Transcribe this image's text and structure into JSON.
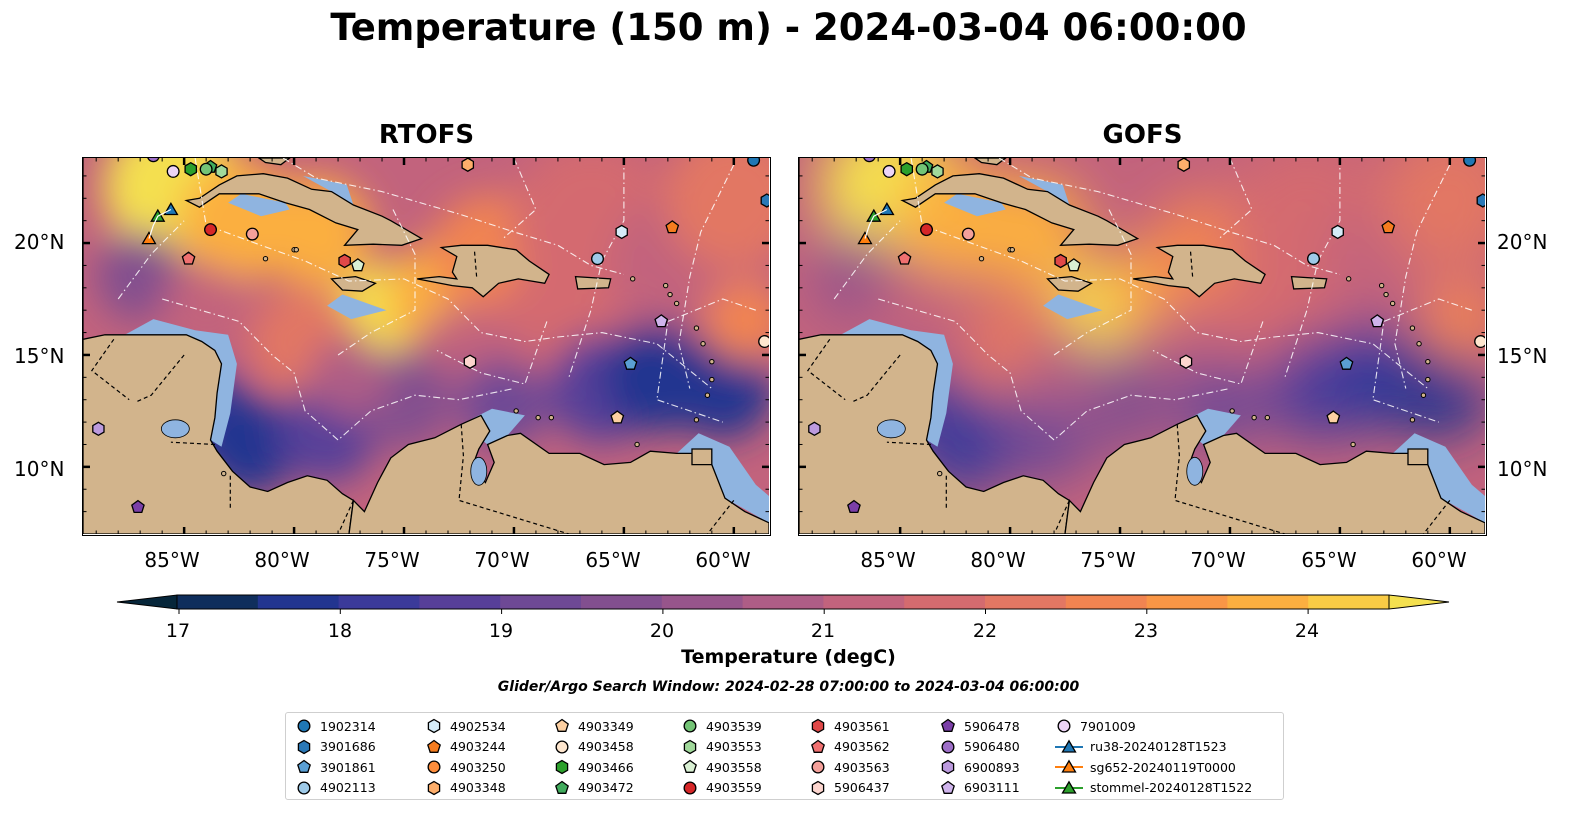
{
  "title": "Temperature (150 m) - 2024-03-04 06:00:00",
  "panels": [
    {
      "title": "RTOFS"
    },
    {
      "title": "GOFS"
    }
  ],
  "map": {
    "lon_range": [
      -89.6,
      -58.4
    ],
    "lat_range": [
      7,
      23.8
    ],
    "lat_ticks": [
      "20°N",
      "15°N",
      "10°N"
    ],
    "lon_ticks": [
      "85°W",
      "80°W",
      "75°W",
      "70°W",
      "65°W",
      "60°W"
    ],
    "colors": {
      "land": "#d2b48c",
      "shelf": "#8fb4e0",
      "ocean_deep": "#08222f",
      "coast": "#000000"
    }
  },
  "colorbar": {
    "label": "Temperature (degC)",
    "ticks": [
      "17",
      "18",
      "19",
      "20",
      "21",
      "22",
      "23",
      "24"
    ],
    "range": [
      16.75,
      24.75
    ],
    "colors": [
      "#06263a",
      "#0f2e5c",
      "#223590",
      "#3b3a9a",
      "#573f99",
      "#6e4995",
      "#824f8f",
      "#97558b",
      "#ae5d86",
      "#c2637d",
      "#d46b6f",
      "#e27763",
      "#f18451",
      "#f99646",
      "#fbaf40",
      "#f9cb45",
      "#f4e04f"
    ]
  },
  "search_window": "Glider/Argo Search Window: 2024-02-28 07:00:00 to 2024-03-04 06:00:00",
  "legend": [
    {
      "label": "1902314",
      "marker": "circle",
      "color": "#1f77b4"
    },
    {
      "label": "3901686",
      "marker": "hexagon",
      "color": "#2a78b6"
    },
    {
      "label": "3901861",
      "marker": "pentagon",
      "color": "#5a9fd4"
    },
    {
      "label": "4902113",
      "marker": "circle",
      "color": "#9ecae8"
    },
    {
      "label": "4902534",
      "marker": "hexagon",
      "color": "#d5ecf8"
    },
    {
      "label": "4903244",
      "marker": "pentagon",
      "color": "#f57c1f"
    },
    {
      "label": "4903250",
      "marker": "circle",
      "color": "#fd8d3c"
    },
    {
      "label": "4903348",
      "marker": "hexagon",
      "color": "#fdae6b"
    },
    {
      "label": "4903349",
      "marker": "pentagon",
      "color": "#fdd0a2"
    },
    {
      "label": "4903458",
      "marker": "circle",
      "color": "#fee6ce"
    },
    {
      "label": "4903466",
      "marker": "hexagon",
      "color": "#2ca02c"
    },
    {
      "label": "4903472",
      "marker": "pentagon",
      "color": "#41ab5d"
    },
    {
      "label": "4903539",
      "marker": "circle",
      "color": "#74c476"
    },
    {
      "label": "4903553",
      "marker": "hexagon",
      "color": "#a1d99b"
    },
    {
      "label": "4903558",
      "marker": "pentagon",
      "color": "#d9f0d3"
    },
    {
      "label": "4903559",
      "marker": "circle",
      "color": "#d62728"
    },
    {
      "label": "4903561",
      "marker": "hexagon",
      "color": "#e04848"
    },
    {
      "label": "4903562",
      "marker": "pentagon",
      "color": "#f07070"
    },
    {
      "label": "4903563",
      "marker": "circle",
      "color": "#f4a09a"
    },
    {
      "label": "5906437",
      "marker": "hexagon",
      "color": "#fcd5ce"
    },
    {
      "label": "5906478",
      "marker": "pentagon",
      "color": "#7b3fa8"
    },
    {
      "label": "5906480",
      "marker": "circle",
      "color": "#9e6fc8"
    },
    {
      "label": "6900893",
      "marker": "hexagon",
      "color": "#bc9ade"
    },
    {
      "label": "6903111",
      "marker": "pentagon",
      "color": "#cfb4ec"
    },
    {
      "label": "7901009",
      "marker": "circle",
      "color": "#ecd4f6"
    },
    {
      "label": "ru38-20240128T1523",
      "marker": "triangle-line",
      "color": "#1f77b4"
    },
    {
      "label": "sg652-20240119T0000",
      "marker": "triangle-line",
      "color": "#ff7f0e"
    },
    {
      "label": "stommel-20240128T1522",
      "marker": "triangle-line",
      "color": "#2ca02c"
    }
  ],
  "observations": [
    {
      "id": "1902314",
      "lon": -59.1,
      "lat": 23.7
    },
    {
      "id": "3901686",
      "lon": -58.5,
      "lat": 21.9
    },
    {
      "id": "3901861",
      "lon": -64.7,
      "lat": 14.6
    },
    {
      "id": "4902113",
      "lon": -66.2,
      "lat": 19.3
    },
    {
      "id": "4902534",
      "lon": -65.1,
      "lat": 20.5
    },
    {
      "id": "4903244",
      "lon": -62.8,
      "lat": 20.7
    },
    {
      "id": "4903348",
      "lon": -72.1,
      "lat": 23.5
    },
    {
      "id": "4903349",
      "lon": -65.3,
      "lat": 12.2
    },
    {
      "id": "4903458",
      "lon": -58.6,
      "lat": 15.6
    },
    {
      "id": "4903466",
      "lon": -84.7,
      "lat": 23.3
    },
    {
      "id": "4903472",
      "lon": -83.8,
      "lat": 23.4
    },
    {
      "id": "4903539",
      "lon": -84.0,
      "lat": 23.3
    },
    {
      "id": "4903553",
      "lon": -83.3,
      "lat": 23.2
    },
    {
      "id": "4903558",
      "lon": -77.1,
      "lat": 19.0
    },
    {
      "id": "4903559",
      "lon": -83.8,
      "lat": 20.6
    },
    {
      "id": "4903561",
      "lon": -77.7,
      "lat": 19.2
    },
    {
      "id": "4903562",
      "lon": -84.8,
      "lat": 19.3
    },
    {
      "id": "4903563",
      "lon": -81.9,
      "lat": 20.4
    },
    {
      "id": "5906437",
      "lon": -72.0,
      "lat": 14.7
    },
    {
      "id": "5906478",
      "lon": -87.1,
      "lat": 8.2
    },
    {
      "id": "5906480",
      "lon": -86.4,
      "lat": 23.9
    },
    {
      "id": "6900893",
      "lon": -88.9,
      "lat": 11.7
    },
    {
      "id": "6903111",
      "lon": -63.3,
      "lat": 16.5
    },
    {
      "id": "7901009",
      "lon": -85.5,
      "lat": 23.2
    },
    {
      "id": "ru38-20240128T1523",
      "lon": -85.6,
      "lat": 21.5
    },
    {
      "id": "sg652-20240119T0000",
      "lon": -86.6,
      "lat": 20.2
    },
    {
      "id": "stommel-20240128T1522",
      "lon": -86.2,
      "lat": 21.2
    }
  ]
}
